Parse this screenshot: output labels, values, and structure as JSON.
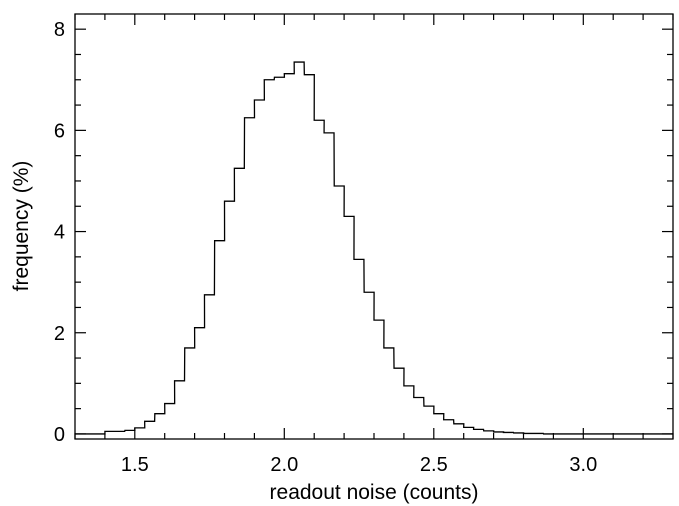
{
  "chart_data": {
    "type": "histogram",
    "xlabel": "readout noise (counts)",
    "ylabel": "frequency (%)",
    "xlim": [
      1.3,
      3.3
    ],
    "ylim": [
      -0.1,
      8.3
    ],
    "xticks": [
      1.5,
      2.0,
      2.5,
      3.0
    ],
    "xtick_labels": [
      "1.5",
      "2.0",
      "2.5",
      "3.0"
    ],
    "yticks": [
      0,
      2,
      4,
      6,
      8
    ],
    "ytick_labels": [
      "0",
      "2",
      "4",
      "6",
      "8"
    ],
    "bin_width": 0.0333,
    "bin_left_edges": [
      1.3,
      1.333,
      1.367,
      1.4,
      1.433,
      1.467,
      1.5,
      1.533,
      1.567,
      1.6,
      1.633,
      1.667,
      1.7,
      1.733,
      1.767,
      1.8,
      1.833,
      1.867,
      1.9,
      1.933,
      1.967,
      2.0,
      2.033,
      2.067,
      2.1,
      2.133,
      2.167,
      2.2,
      2.233,
      2.267,
      2.3,
      2.333,
      2.367,
      2.4,
      2.433,
      2.467,
      2.5,
      2.533,
      2.567,
      2.6,
      2.633,
      2.667,
      2.7,
      2.733,
      2.767,
      2.8,
      2.833,
      2.867,
      2.9,
      2.933,
      2.967,
      3.0,
      3.033,
      3.067,
      3.1,
      3.133,
      3.167,
      3.2,
      3.233,
      3.267
    ],
    "values": [
      0,
      0,
      0,
      0.05,
      0.05,
      0.07,
      0.12,
      0.25,
      0.4,
      0.6,
      1.05,
      1.7,
      2.1,
      2.75,
      3.82,
      4.6,
      5.25,
      6.25,
      6.6,
      7.0,
      7.05,
      7.12,
      7.35,
      7.1,
      6.2,
      5.95,
      4.9,
      4.3,
      3.45,
      2.8,
      2.25,
      1.7,
      1.3,
      0.95,
      0.72,
      0.55,
      0.4,
      0.28,
      0.2,
      0.13,
      0.09,
      0.06,
      0.04,
      0.03,
      0.02,
      0.01,
      0.01,
      0,
      0,
      0,
      0,
      0,
      0,
      0,
      0,
      0,
      0,
      0,
      0,
      0
    ],
    "color": "#000000",
    "grid": false
  }
}
